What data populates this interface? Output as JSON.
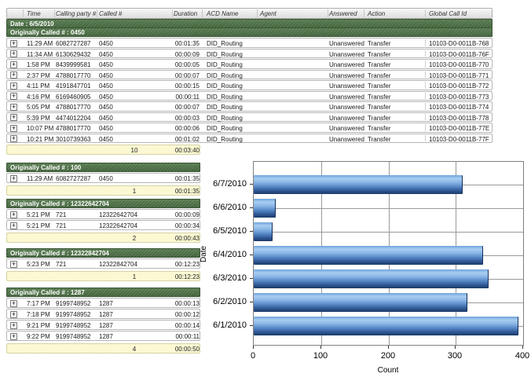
{
  "report": {
    "columns": [
      "",
      "Time",
      "Calling party #",
      "Called #",
      "Duration",
      "ACD Name",
      "Agent",
      "Answered",
      "Action",
      "Global Call Id"
    ],
    "date_band": "Date : 6/5/2010",
    "groups": [
      {
        "header": "Originally Called # : 0450",
        "full_width": true,
        "rows": [
          {
            "time": "11:29 AM",
            "calling": "6082727287",
            "called": "0450",
            "duration": "00:01:35",
            "acd": "DID_Routing",
            "agent": "",
            "answered": "Unanswered",
            "action": "Transfer",
            "global_id": "10103-D0-0011B-768"
          },
          {
            "time": "11:34 AM",
            "calling": "6130629432",
            "called": "0450",
            "duration": "00:00:09",
            "acd": "DID_Routing",
            "agent": "",
            "answered": "Unanswered",
            "action": "Transfer",
            "global_id": "10103-D0-0011B-76F"
          },
          {
            "time": "1:58 PM",
            "calling": "8439999581",
            "called": "0450",
            "duration": "00:00:05",
            "acd": "DID_Routing",
            "agent": "",
            "answered": "Unanswered",
            "action": "Transfer",
            "global_id": "10103-D0-0011B-770"
          },
          {
            "time": "2:37 PM",
            "calling": "4788017770",
            "called": "0450",
            "duration": "00:00:07",
            "acd": "DID_Routing",
            "agent": "",
            "answered": "Unanswered",
            "action": "Transfer",
            "global_id": "10103-D0-0011B-771"
          },
          {
            "time": "4:11 PM",
            "calling": "4191847701",
            "called": "0450",
            "duration": "00:00:15",
            "acd": "DID_Routing",
            "agent": "",
            "answered": "Unanswered",
            "action": "Transfer",
            "global_id": "10103-D0-0011B-772"
          },
          {
            "time": "4:16 PM",
            "calling": "6169460905",
            "called": "0450",
            "duration": "00:00:11",
            "acd": "DID_Routing",
            "agent": "",
            "answered": "Unanswered",
            "action": "Transfer",
            "global_id": "10103-D0-0011B-773"
          },
          {
            "time": "5:05 PM",
            "calling": "4788017770",
            "called": "0450",
            "duration": "00:00:07",
            "acd": "DID_Routing",
            "agent": "",
            "answered": "Unanswered",
            "action": "Transfer",
            "global_id": "10103-D0-0011B-774"
          },
          {
            "time": "5:39 PM",
            "calling": "4474012204",
            "called": "0450",
            "duration": "00:00:03",
            "acd": "DID_Routing",
            "agent": "",
            "answered": "Unanswered",
            "action": "Transfer",
            "global_id": "10103-D0-0011B-778"
          },
          {
            "time": "10:07 PM",
            "calling": "4788017770",
            "called": "0450",
            "duration": "00:00:06",
            "acd": "DID_Routing",
            "agent": "",
            "answered": "Unanswered",
            "action": "Transfer",
            "global_id": "10103-D0-0011B-77E"
          },
          {
            "time": "10:21 PM",
            "calling": "3010739363",
            "called": "0450",
            "duration": "00:01:02",
            "acd": "DID_Routing",
            "agent": "",
            "answered": "Unanswered",
            "action": "Transfer",
            "global_id": "10103-D0-0011B-77F"
          }
        ],
        "summary": {
          "count": "10",
          "total": "00:03:40"
        }
      },
      {
        "header": "Originally Called # : 100",
        "full_width": false,
        "rows": [
          {
            "time": "11:29 AM",
            "calling": "6082727287",
            "called": "0450",
            "duration": "00:01:35"
          }
        ],
        "summary": {
          "count": "1",
          "total": "00:01:35"
        }
      },
      {
        "header": "Originally Called # : 12322642704",
        "full_width": false,
        "rows": [
          {
            "time": "5:21 PM",
            "calling": "721",
            "called": "12322642704",
            "duration": "00:00:09"
          },
          {
            "time": "5:21 PM",
            "calling": "721",
            "called": "12322642704",
            "duration": "00:00:34"
          }
        ],
        "summary": {
          "count": "2",
          "total": "00:00:43"
        }
      },
      {
        "header": "Originally Called # : 12322842704",
        "full_width": false,
        "rows": [
          {
            "time": "5:23 PM",
            "calling": "721",
            "called": "12322842704",
            "duration": "00:12:23"
          }
        ],
        "summary": {
          "count": "1",
          "total": "00:12:23"
        }
      },
      {
        "header": "Originally Called # : 1287",
        "full_width": false,
        "rows": [
          {
            "time": "7:17 PM",
            "calling": "9199748952",
            "called": "1287",
            "duration": "00:00:13"
          },
          {
            "time": "7:18 PM",
            "calling": "9199748952",
            "called": "1287",
            "duration": "00:00:12"
          },
          {
            "time": "9:21 PM",
            "calling": "9199748952",
            "called": "1287",
            "duration": "00:00:14"
          },
          {
            "time": "9:22 PM",
            "calling": "9199748952",
            "called": "1287",
            "duration": "00:00:11"
          }
        ],
        "summary": {
          "count": "4",
          "total": "00:00:50"
        }
      }
    ],
    "expand_glyph": "+"
  },
  "chart_data": {
    "type": "bar",
    "orientation": "horizontal",
    "title": "",
    "categories": [
      "6/7/2010",
      "6/6/2010",
      "6/5/2010",
      "6/4/2010",
      "6/3/2010",
      "6/2/2010",
      "6/1/2010"
    ],
    "values": [
      310,
      33,
      28,
      341,
      349,
      317,
      393
    ],
    "xlabel": "Count",
    "ylabel": "Date",
    "xlim": [
      0,
      400
    ],
    "xticks": [
      0,
      100,
      200,
      300,
      400
    ],
    "grid": true,
    "legend": false,
    "bar_color_light": "#a9cdf1",
    "bar_color_dark": "#1d3a66"
  },
  "colors": {
    "group_band_green": "#4b6e44",
    "summary_yellow": "#fbf7cb",
    "row_border": "#b6b6b6",
    "grid_gray": "#9a9a9a"
  }
}
